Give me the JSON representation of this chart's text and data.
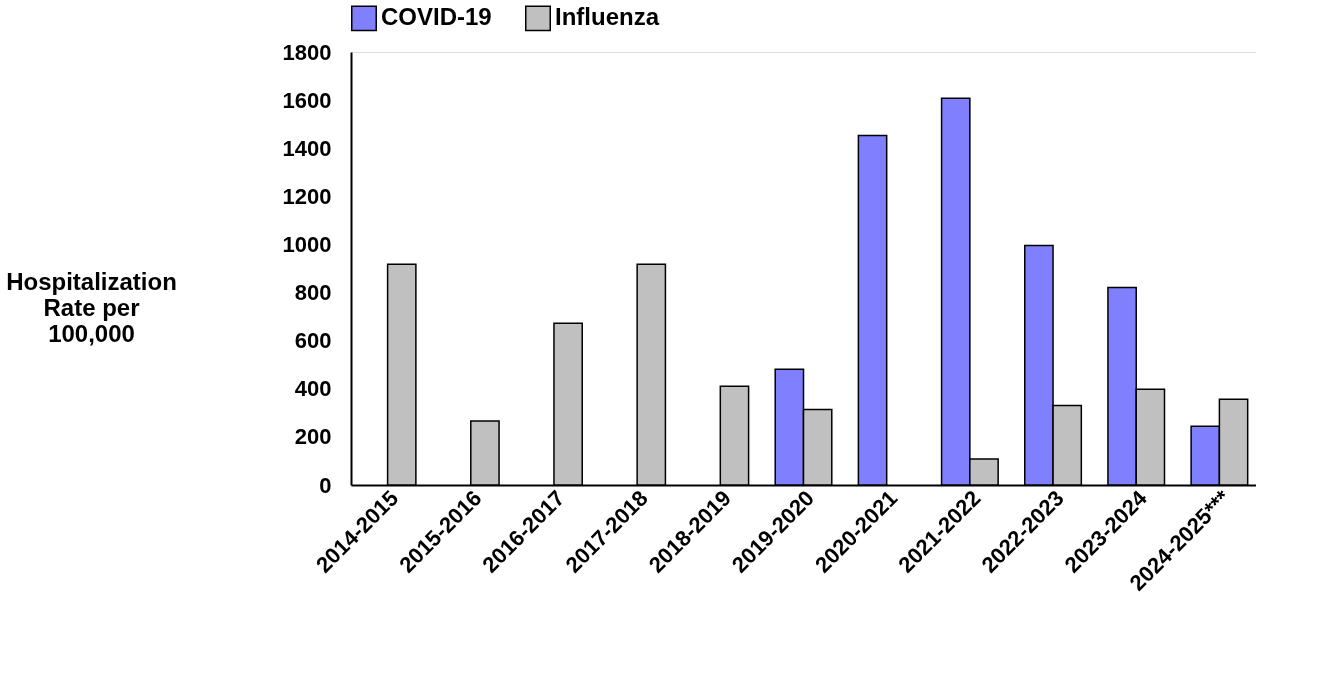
{
  "chart_data": {
    "type": "bar",
    "categories": [
      "2014-2015",
      "2015-2016",
      "2016-2017",
      "2017-2018",
      "2018-2019",
      "2019-2020",
      "2020-2021",
      "2021-2022",
      "2022-2023",
      "2023-2024",
      "2024-2025***"
    ],
    "series": [
      {
        "name": "COVID-19",
        "color": "#8080ff",
        "values": [
          null,
          null,
          null,
          null,
          null,
          481,
          1453,
          1608,
          996,
          821,
          244
        ]
      },
      {
        "name": "Influenza",
        "color": "#c0c0c0",
        "values": [
          918,
          266,
          672,
          918,
          411,
          314,
          null,
          108,
          330,
          398,
          356
        ]
      }
    ],
    "ylabel": "Hospitalization Rate per 100,000",
    "ylim": [
      0,
      1800
    ],
    "yticks": [
      0,
      200,
      400,
      600,
      800,
      {
        "value": 1000,
        "label": "1000"
      },
      {
        "value": 1200,
        "label": "1200"
      },
      {
        "value": 1400,
        "label": "1400"
      },
      {
        "value": 1600,
        "label": "1600"
      },
      {
        "value": 1800,
        "label": "1800"
      }
    ],
    "grid": false,
    "legend": "top"
  }
}
